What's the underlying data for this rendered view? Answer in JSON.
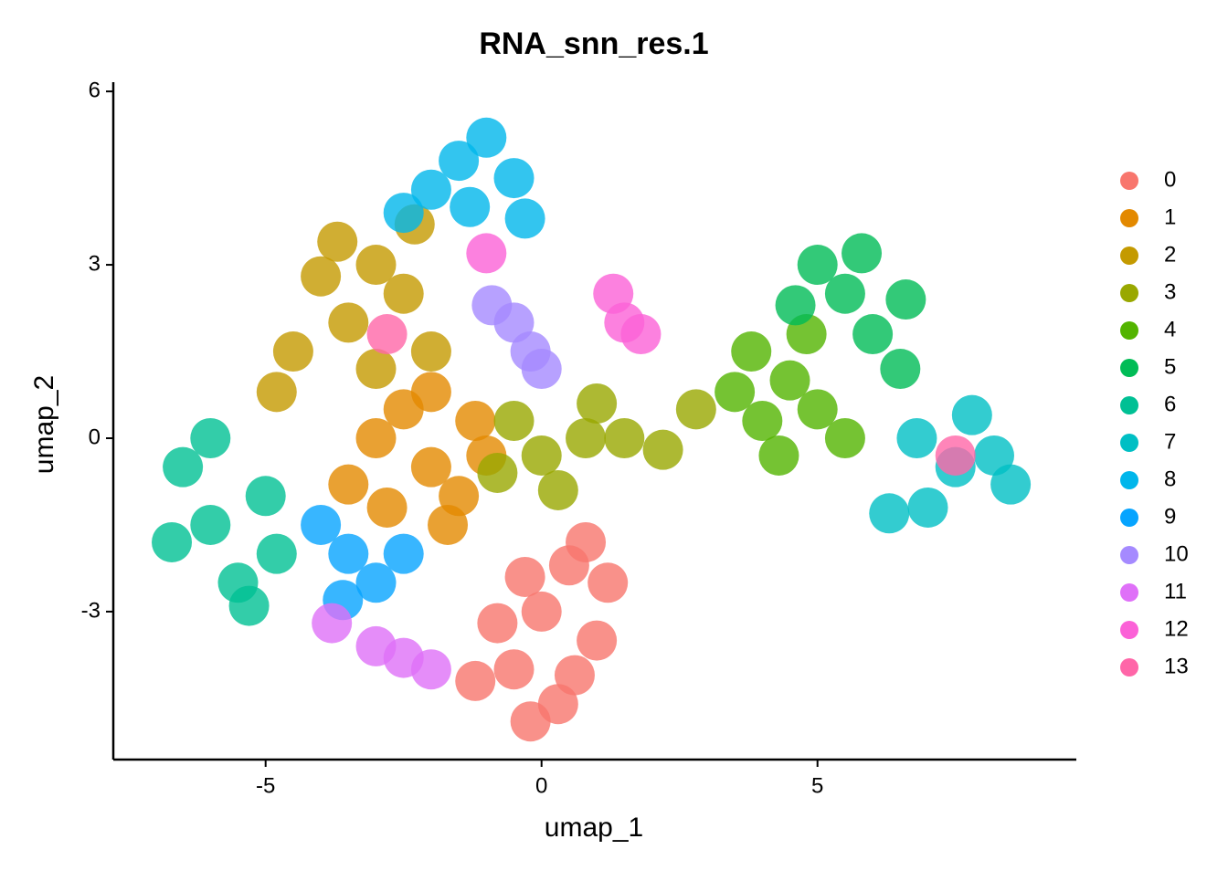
{
  "chart_data": {
    "type": "scatter",
    "title": "RNA_snn_res.1",
    "x_label": "umap_1",
    "y_label": "umap_2",
    "xlim": [
      -7.76,
      9.69
    ],
    "ylim": [
      -5.56,
      6.16
    ],
    "xticks": [
      -5,
      0,
      5
    ],
    "yticks": [
      -3,
      0,
      3,
      6
    ],
    "grid": false,
    "legend": "right",
    "series": [
      {
        "name": "0",
        "color": "#F8766D",
        "x": [
          0,
          0.5,
          -0.5,
          1,
          -1.2,
          0.3,
          0.8,
          -0.8,
          1.2,
          -0.3,
          -0.2,
          0.6
        ],
        "y": [
          -3,
          -2.2,
          -4,
          -3.5,
          -4.2,
          -4.6,
          -1.8,
          -3.2,
          -2.5,
          -2.4,
          -4.9,
          -4.1
        ]
      },
      {
        "name": "1",
        "color": "#E38900",
        "x": [
          -2,
          -1.5,
          -3,
          -2.5,
          -1,
          -3.5,
          -2,
          -1.2,
          -2.8,
          -1.7
        ],
        "y": [
          -0.5,
          -1,
          0,
          0.5,
          -0.3,
          -0.8,
          0.8,
          0.3,
          -1.2,
          -1.5
        ]
      },
      {
        "name": "2",
        "color": "#C49A00",
        "x": [
          -3.5,
          -3,
          -4.5,
          -2.5,
          -4,
          -2,
          -3,
          -4.8,
          -2.3,
          -3.7
        ],
        "y": [
          2,
          3,
          1.5,
          2.5,
          2.8,
          1.5,
          1.2,
          0.8,
          3.7,
          3.4
        ]
      },
      {
        "name": "3",
        "color": "#99A800",
        "x": [
          0,
          0.8,
          -0.5,
          1.5,
          0.3,
          2.2,
          -0.8,
          1,
          2.8
        ],
        "y": [
          -0.3,
          0,
          0.3,
          0,
          -0.9,
          -0.2,
          -0.6,
          0.6,
          0.5
        ]
      },
      {
        "name": "4",
        "color": "#53B400",
        "x": [
          4.5,
          4,
          5,
          3.8,
          5.5,
          4.3,
          4.8,
          3.5
        ],
        "y": [
          1,
          0.3,
          0.5,
          1.5,
          0,
          -0.3,
          1.8,
          0.8
        ]
      },
      {
        "name": "5",
        "color": "#00BC56",
        "x": [
          5.5,
          6,
          5,
          6.5,
          5.8,
          4.6,
          6.6
        ],
        "y": [
          2.5,
          1.8,
          3,
          1.2,
          3.2,
          2.3,
          2.4
        ]
      },
      {
        "name": "6",
        "color": "#00C094",
        "x": [
          -6,
          -5.5,
          -6.5,
          -5,
          -6,
          -5.3,
          -6.7,
          -4.8
        ],
        "y": [
          -1.5,
          -2.5,
          -0.5,
          -1,
          0,
          -2.9,
          -1.8,
          -2
        ]
      },
      {
        "name": "7",
        "color": "#00BFC4",
        "x": [
          7.5,
          8.2,
          7,
          8.5,
          6.8,
          7.8,
          6.3
        ],
        "y": [
          -0.5,
          -0.3,
          -1.2,
          -0.8,
          0,
          0.4,
          -1.3
        ]
      },
      {
        "name": "8",
        "color": "#00B6EB",
        "x": [
          -1.5,
          -1,
          -2,
          -0.5,
          -1.3,
          -2.5,
          -0.3
        ],
        "y": [
          4.8,
          5.2,
          4.3,
          4.5,
          4,
          3.9,
          3.8
        ]
      },
      {
        "name": "9",
        "color": "#06A4FF",
        "x": [
          -3.5,
          -3,
          -4,
          -2.5,
          -3.6
        ],
        "y": [
          -2,
          -2.5,
          -1.5,
          -2,
          -2.8
        ]
      },
      {
        "name": "10",
        "color": "#A58AFF",
        "x": [
          -0.5,
          -0.2,
          -0.9,
          0
        ],
        "y": [
          2,
          1.5,
          2.3,
          1.2
        ]
      },
      {
        "name": "11",
        "color": "#DF70F8",
        "x": [
          -2.5,
          -3,
          -2,
          -3.8
        ],
        "y": [
          -3.8,
          -3.6,
          -4,
          -3.2
        ]
      },
      {
        "name": "12",
        "color": "#FB61D7",
        "x": [
          1.5,
          1.3,
          1.8,
          -1
        ],
        "y": [
          2,
          2.5,
          1.8,
          3.2
        ]
      },
      {
        "name": "13",
        "color": "#FF66A8",
        "x": [
          -2.8,
          7.5
        ],
        "y": [
          1.8,
          -0.3
        ]
      }
    ]
  }
}
